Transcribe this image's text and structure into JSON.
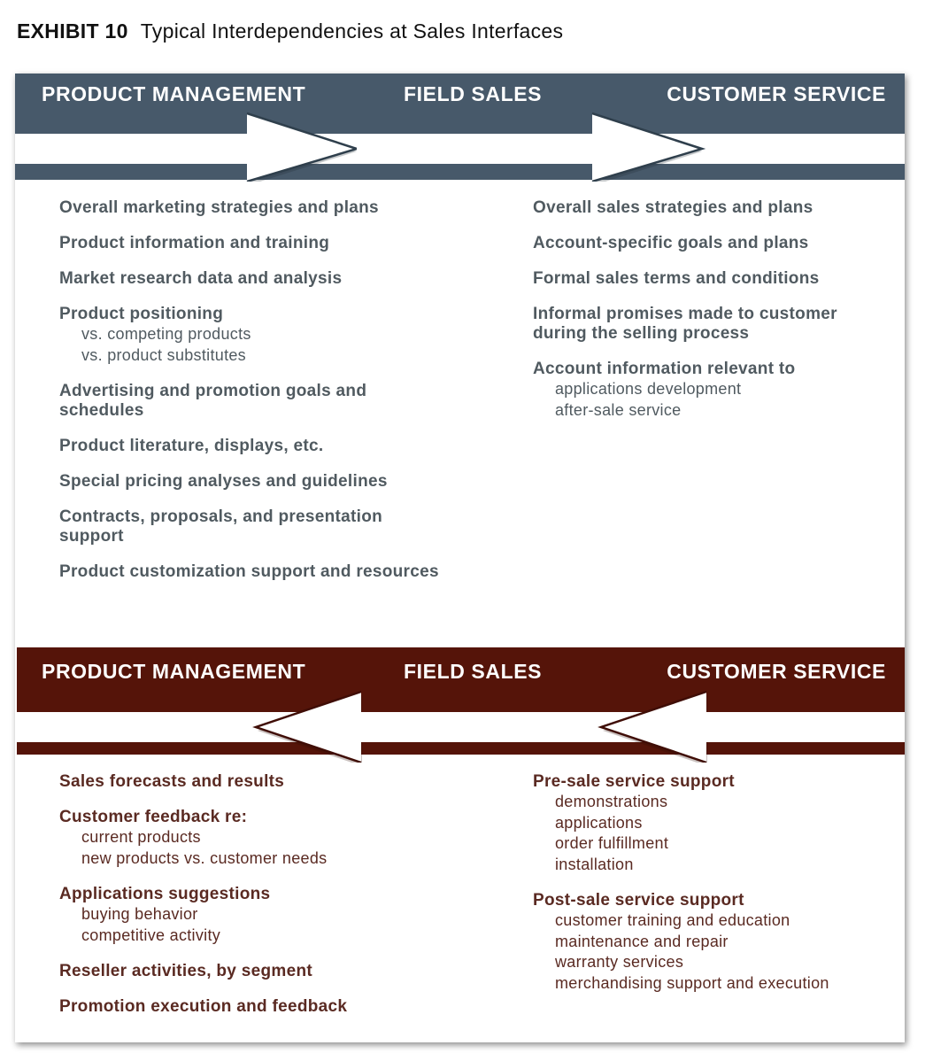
{
  "exhibit": {
    "label": "EXHIBIT 10",
    "title": "Typical Interdependencies at Sales Interfaces"
  },
  "colors": {
    "top_band": "#47596a",
    "bottom_band": "#551409",
    "gray_text": "#505a60",
    "brown_text": "#5a2a22"
  },
  "top_section": {
    "headers": [
      "PRODUCT MANAGEMENT",
      "FIELD SALES",
      "CUSTOMER SERVICE"
    ],
    "arrow_direction": "right",
    "left_items": [
      {
        "text": "Overall marketing strategies and plans",
        "sub": []
      },
      {
        "text": "Product information and training",
        "sub": []
      },
      {
        "text": "Market research data and analysis",
        "sub": []
      },
      {
        "text": "Product positioning",
        "sub": [
          "vs. competing products",
          "vs. product substitutes"
        ]
      },
      {
        "text": "Advertising and promotion goals and schedules",
        "sub": []
      },
      {
        "text": "Product literature, displays, etc.",
        "sub": []
      },
      {
        "text": "Special pricing analyses and guidelines",
        "sub": []
      },
      {
        "text": "Contracts, proposals, and presentation support",
        "sub": []
      },
      {
        "text": "Product customization support and resources",
        "sub": []
      }
    ],
    "right_items": [
      {
        "text": "Overall sales strategies and plans",
        "sub": []
      },
      {
        "text": "Account-specific goals and plans",
        "sub": []
      },
      {
        "text": "Formal sales terms and conditions",
        "sub": []
      },
      {
        "text": "Informal promises made to customer during the selling process",
        "sub": []
      },
      {
        "text": "Account information relevant to",
        "sub": [
          "applications development",
          "after-sale service"
        ]
      }
    ]
  },
  "bottom_section": {
    "headers": [
      "PRODUCT MANAGEMENT",
      "FIELD SALES",
      "CUSTOMER SERVICE"
    ],
    "arrow_direction": "left",
    "left_items": [
      {
        "text": "Sales forecasts and results",
        "sub": []
      },
      {
        "text": "Customer feedback re:",
        "sub": [
          "current products",
          "new products vs. customer needs"
        ]
      },
      {
        "text": "Applications suggestions",
        "sub": [
          "buying behavior",
          "competitive activity"
        ]
      },
      {
        "text": "Reseller activities, by segment",
        "sub": []
      },
      {
        "text": "Promotion execution and feedback",
        "sub": []
      }
    ],
    "right_items": [
      {
        "text": "Pre-sale service support",
        "sub": [
          "demonstrations",
          "applications",
          "order fulfillment",
          "installation"
        ]
      },
      {
        "text": "Post-sale service support",
        "sub": [
          "customer training and education",
          "maintenance and repair",
          "warranty services",
          "merchandising support and execution"
        ]
      }
    ]
  }
}
